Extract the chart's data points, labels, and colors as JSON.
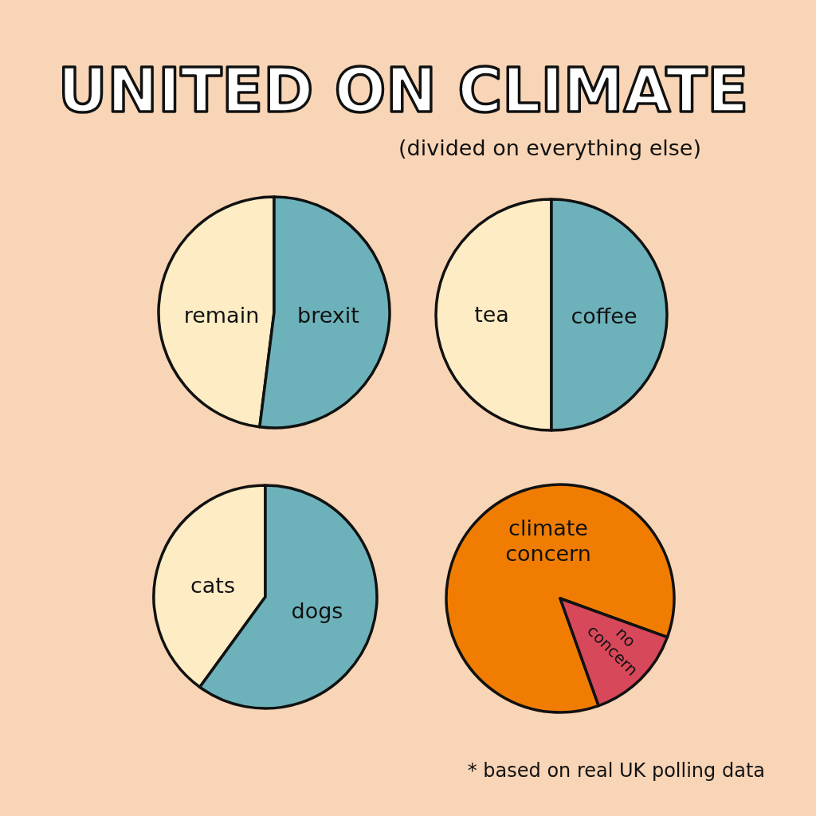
{
  "chart_data": [
    {
      "type": "other",
      "title": "UNITED ON CLIMATE",
      "subtitle": "(divided on everything else)"
    },
    {
      "type": "pie",
      "categories": [
        "remain",
        "brexit"
      ],
      "values": [
        48,
        52
      ],
      "colors": [
        "#fdecc4",
        "#6db2ba"
      ]
    },
    {
      "type": "pie",
      "categories": [
        "tea",
        "coffee"
      ],
      "values": [
        50,
        50
      ],
      "colors": [
        "#fdecc4",
        "#6db2ba"
      ]
    },
    {
      "type": "pie",
      "categories": [
        "cats",
        "dogs"
      ],
      "values": [
        40,
        60
      ],
      "colors": [
        "#fdecc4",
        "#6db2ba"
      ]
    },
    {
      "type": "pie",
      "categories": [
        "climate concern",
        "no concern"
      ],
      "values": [
        86,
        14
      ],
      "colors": [
        "#f07d02",
        "#d6485a"
      ],
      "annotations": [
        "* based on real UK polling data"
      ]
    }
  ]
}
